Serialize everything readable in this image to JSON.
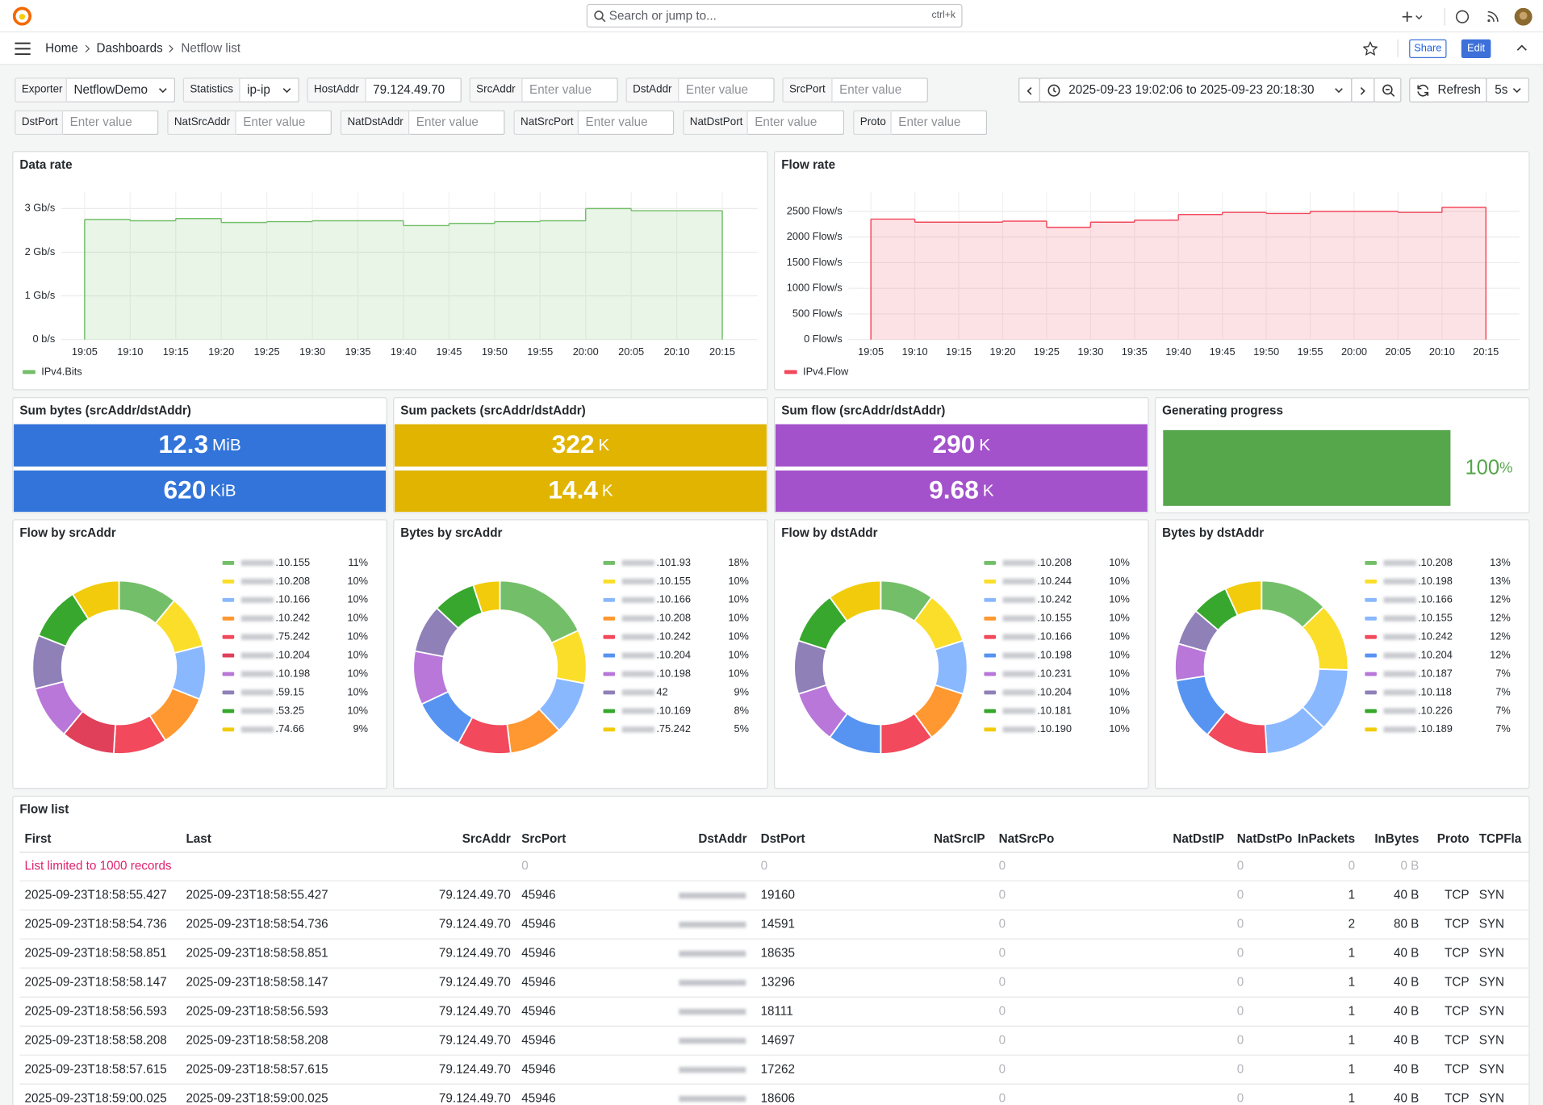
{
  "header": {
    "search_placeholder": "Search or jump to...",
    "shortcut": "ctrl+k",
    "breadcrumbs": [
      "Home",
      "Dashboards",
      "Netflow list"
    ],
    "share": "Share",
    "edit": "Edit"
  },
  "variables": [
    {
      "label": "Exporter",
      "value": "NetflowDemo"
    },
    {
      "label": "Statistics",
      "value": "ip-ip"
    },
    {
      "label": "HostAddr",
      "value": "79.124.49.70"
    },
    {
      "label": "SrcAddr",
      "placeholder": "Enter value"
    },
    {
      "label": "DstAddr",
      "placeholder": "Enter value"
    },
    {
      "label": "SrcPort",
      "placeholder": "Enter value"
    },
    {
      "label": "DstPort",
      "placeholder": "Enter value"
    },
    {
      "label": "NatSrcAddr",
      "placeholder": "Enter value"
    },
    {
      "label": "NatDstAddr",
      "placeholder": "Enter value"
    },
    {
      "label": "NatSrcPort",
      "placeholder": "Enter value"
    },
    {
      "label": "NatDstPort",
      "placeholder": "Enter value"
    },
    {
      "label": "Proto",
      "placeholder": "Enter value"
    }
  ],
  "time_range": {
    "range": "2025-09-23 19:02:06 to 2025-09-23 20:18:30",
    "refresh": "Refresh",
    "interval": "5s"
  },
  "chart_data": [
    {
      "type": "line",
      "title": "Data rate",
      "step": true,
      "grid": true,
      "legend": "bottom-left",
      "x": [
        "19:05",
        "19:10",
        "19:15",
        "19:20",
        "19:25",
        "19:30",
        "19:35",
        "19:40",
        "19:45",
        "19:50",
        "19:55",
        "20:00",
        "20:05",
        "20:10",
        "20:15"
      ],
      "series": [
        {
          "name": "IPv4.Bits",
          "color": "#73bf69",
          "values": [
            2.75,
            2.72,
            2.77,
            2.68,
            2.7,
            2.72,
            2.72,
            2.61,
            2.66,
            2.7,
            2.72,
            3.0,
            2.95,
            2.95,
            2.95
          ]
        }
      ],
      "ylim": [
        0,
        3.38
      ],
      "yticks": [
        {
          "value": 0,
          "label": "0 b/s"
        },
        {
          "value": 1,
          "label": "1 Gb/s"
        },
        {
          "value": 2,
          "label": "2 Gb/s"
        },
        {
          "value": 3,
          "label": "3 Gb/s"
        }
      ]
    },
    {
      "type": "line",
      "title": "Flow rate",
      "step": true,
      "grid": true,
      "legend": "bottom-left",
      "x": [
        "19:05",
        "19:10",
        "19:15",
        "19:20",
        "19:25",
        "19:30",
        "19:35",
        "19:40",
        "19:45",
        "19:50",
        "19:55",
        "20:00",
        "20:05",
        "20:10",
        "20:15"
      ],
      "series": [
        {
          "name": "IPv4.Flow",
          "color": "#f2495c",
          "values": [
            2350,
            2290,
            2290,
            2310,
            2190,
            2290,
            2330,
            2440,
            2480,
            2460,
            2500,
            2500,
            2480,
            2580,
            2580
          ]
        }
      ],
      "ylim": [
        0,
        2880
      ],
      "yticks": [
        {
          "value": 0,
          "label": "0 Flow/s"
        },
        {
          "value": 500,
          "label": "500 Flow/s"
        },
        {
          "value": 1000,
          "label": "1000 Flow/s"
        },
        {
          "value": 1500,
          "label": "1500 Flow/s"
        },
        {
          "value": 2000,
          "label": "2000 Flow/s"
        },
        {
          "value": 2500,
          "label": "2500 Flow/s"
        }
      ]
    },
    {
      "type": "stat",
      "title": "Sum bytes (srcAddr/dstAddr)",
      "values": [
        12.3,
        620
      ],
      "units": [
        "MiB",
        "KiB"
      ],
      "color": "#3274d9"
    },
    {
      "type": "stat",
      "title": "Sum packets (srcAddr/dstAddr)",
      "values": [
        322,
        14.4
      ],
      "units": [
        "K",
        "K"
      ],
      "color": "#e0b400"
    },
    {
      "type": "stat",
      "title": "Sum flow (srcAddr/dstAddr)",
      "values": [
        290,
        9.68
      ],
      "units": [
        "K",
        "K"
      ],
      "color": "#a352cc"
    },
    {
      "type": "bargauge",
      "title": "Generating progress",
      "value": 100,
      "unit": "%",
      "ylim": [
        0,
        100
      ],
      "color": "#56a64b"
    },
    {
      "type": "pie",
      "title": "Flow by srcAddr",
      "categories": [
        ".10.155",
        ".10.208",
        ".10.166",
        ".10.242",
        ".75.242",
        ".10.204",
        ".10.198",
        ".59.15",
        ".53.25",
        ".74.66"
      ],
      "values": [
        11,
        10,
        10,
        10,
        10,
        10,
        10,
        10,
        10,
        9
      ],
      "value_labels": [
        "11%",
        "10%",
        "10%",
        "10%",
        "10%",
        "10%",
        "10%",
        "10%",
        "10%",
        "9%"
      ],
      "colors": [
        "#73bf69",
        "#fade2a",
        "#8ab8ff",
        "#ff9830",
        "#f2495c",
        "#e0405a",
        "#b877d9",
        "#8f80b8",
        "#37a82d",
        "#f2cc0c"
      ]
    },
    {
      "type": "pie",
      "title": "Bytes by srcAddr",
      "categories": [
        ".101.93",
        ".10.155",
        ".10.166",
        ".10.208",
        ".10.242",
        ".10.204",
        ".10.198",
        "42",
        ".10.169",
        ".75.242"
      ],
      "values": [
        18,
        10,
        10,
        10,
        10,
        10,
        10,
        9,
        8,
        5
      ],
      "value_labels": [
        "18%",
        "10%",
        "10%",
        "10%",
        "10%",
        "10%",
        "10%",
        "9%",
        "8%",
        "5%"
      ],
      "colors": [
        "#73bf69",
        "#fade2a",
        "#8ab8ff",
        "#ff9830",
        "#f2495c",
        "#5794f2",
        "#b877d9",
        "#8f80b8",
        "#37a82d",
        "#f2cc0c"
      ]
    },
    {
      "type": "pie",
      "title": "Flow by dstAddr",
      "categories": [
        ".10.208",
        ".10.244",
        ".10.242",
        ".10.155",
        ".10.166",
        ".10.198",
        ".10.231",
        ".10.204",
        ".10.181",
        ".10.190"
      ],
      "values": [
        10,
        10,
        10,
        10,
        10,
        10,
        10,
        10,
        10,
        10
      ],
      "value_labels": [
        "10%",
        "10%",
        "10%",
        "10%",
        "10%",
        "10%",
        "10%",
        "10%",
        "10%",
        "10%"
      ],
      "colors": [
        "#73bf69",
        "#fade2a",
        "#8ab8ff",
        "#ff9830",
        "#f2495c",
        "#5794f2",
        "#b877d9",
        "#8f80b8",
        "#37a82d",
        "#f2cc0c"
      ]
    },
    {
      "type": "pie",
      "title": "Bytes by dstAddr",
      "categories": [
        ".10.208",
        ".10.198",
        ".10.166",
        ".10.155",
        ".10.242",
        ".10.204",
        ".10.187",
        ".10.118",
        ".10.226",
        ".10.189"
      ],
      "values": [
        13,
        13,
        12,
        12,
        12,
        12,
        7,
        7,
        7,
        7
      ],
      "value_labels": [
        "13%",
        "13%",
        "12%",
        "12%",
        "12%",
        "12%",
        "7%",
        "7%",
        "7%",
        "7%"
      ],
      "colors": [
        "#73bf69",
        "#fade2a",
        "#8ab8ff",
        "#8ab8ff",
        "#f2495c",
        "#5794f2",
        "#b877d9",
        "#8f80b8",
        "#37a82d",
        "#f2cc0c"
      ]
    }
  ],
  "table": {
    "title": "Flow list",
    "columns": [
      "First",
      "Last",
      "SrcAddr",
      "SrcPort",
      "DstAddr",
      "DstPort",
      "NatSrcIP",
      "NatSrcPo",
      "NatDstIP",
      "NatDstPo",
      "InPackets",
      "InBytes",
      "Proto",
      "TCPFla"
    ],
    "rows": [
      [
        "List limited to 1000 records",
        null,
        null,
        0,
        null,
        0,
        null,
        0,
        null,
        0,
        0,
        "0 B",
        null,
        null
      ],
      [
        "2025-09-23T18:58:55.427",
        "2025-09-23T18:58:55.427",
        "79.124.49.70",
        45946,
        null,
        19160,
        null,
        0,
        null,
        0,
        1,
        "40 B",
        "TCP",
        "SYN"
      ],
      [
        "2025-09-23T18:58:54.736",
        "2025-09-23T18:58:54.736",
        "79.124.49.70",
        45946,
        null,
        14591,
        null,
        0,
        null,
        0,
        2,
        "80 B",
        "TCP",
        "SYN"
      ],
      [
        "2025-09-23T18:58:58.851",
        "2025-09-23T18:58:58.851",
        "79.124.49.70",
        45946,
        null,
        18635,
        null,
        0,
        null,
        0,
        1,
        "40 B",
        "TCP",
        "SYN"
      ],
      [
        "2025-09-23T18:58:58.147",
        "2025-09-23T18:58:58.147",
        "79.124.49.70",
        45946,
        null,
        13296,
        null,
        0,
        null,
        0,
        1,
        "40 B",
        "TCP",
        "SYN"
      ],
      [
        "2025-09-23T18:58:56.593",
        "2025-09-23T18:58:56.593",
        "79.124.49.70",
        45946,
        null,
        18111,
        null,
        0,
        null,
        0,
        1,
        "40 B",
        "TCP",
        "SYN"
      ],
      [
        "2025-09-23T18:58:58.208",
        "2025-09-23T18:58:58.208",
        "79.124.49.70",
        45946,
        null,
        14697,
        null,
        0,
        null,
        0,
        1,
        "40 B",
        "TCP",
        "SYN"
      ],
      [
        "2025-09-23T18:58:57.615",
        "2025-09-23T18:58:57.615",
        "79.124.49.70",
        45946,
        null,
        17262,
        null,
        0,
        null,
        0,
        1,
        "40 B",
        "TCP",
        "SYN"
      ],
      [
        "2025-09-23T18:59:00.025",
        "2025-09-23T18:59:00.025",
        "79.124.49.70",
        45946,
        null,
        18606,
        null,
        0,
        null,
        0,
        1,
        "40 B",
        "TCP",
        "SYN"
      ]
    ]
  }
}
